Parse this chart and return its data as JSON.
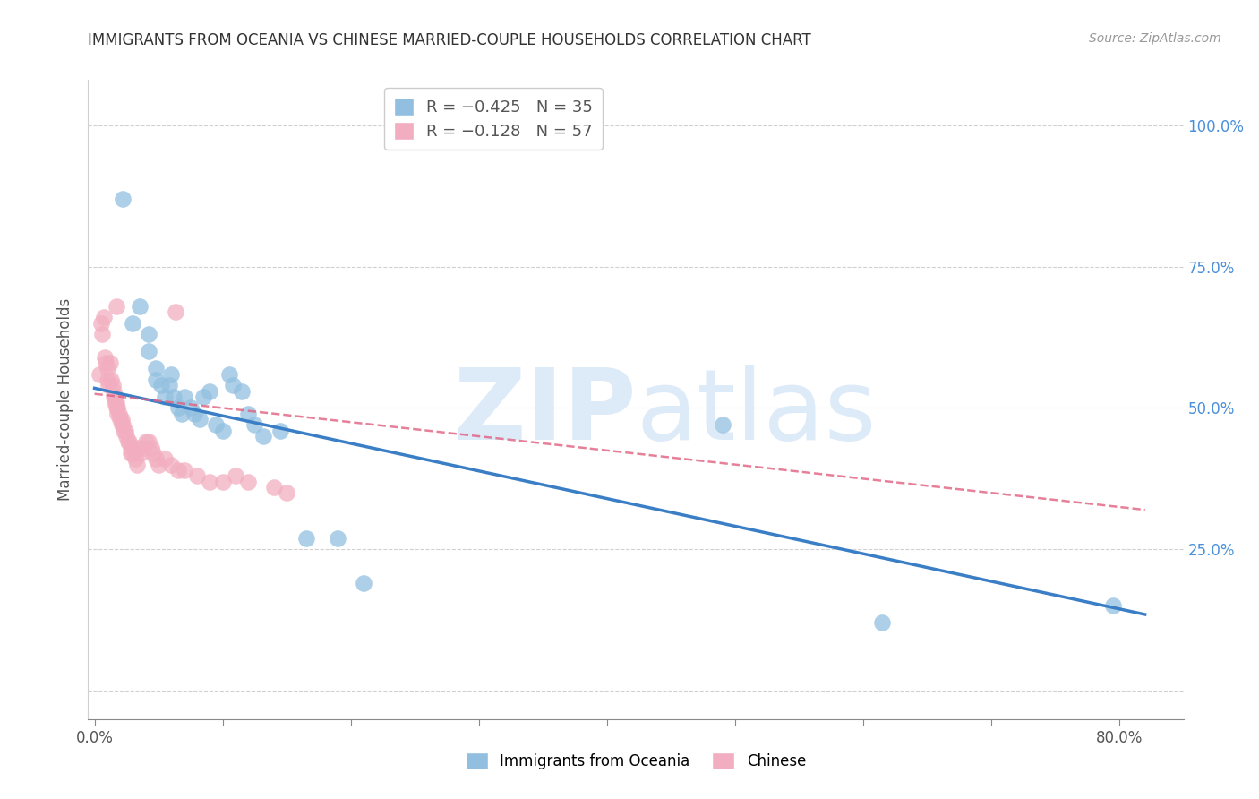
{
  "title": "IMMIGRANTS FROM OCEANIA VS CHINESE MARRIED-COUPLE HOUSEHOLDS CORRELATION CHART",
  "source": "Source: ZipAtlas.com",
  "ylabel": "Married-couple Households",
  "x_tick_positions": [
    0.0,
    0.1,
    0.2,
    0.3,
    0.4,
    0.5,
    0.6,
    0.7,
    0.8
  ],
  "x_tick_labels": [
    "0.0%",
    "",
    "",
    "",
    "",
    "",
    "",
    "",
    "80.0%"
  ],
  "y_ticks": [
    0.0,
    0.25,
    0.5,
    0.75,
    1.0
  ],
  "y_tick_labels_right": [
    "",
    "25.0%",
    "50.0%",
    "75.0%",
    "100.0%"
  ],
  "xlim": [
    -0.005,
    0.85
  ],
  "ylim": [
    -0.05,
    1.08
  ],
  "blue_color": "#92bfe0",
  "pink_color": "#f2aec0",
  "blue_line_color": "#3a7ec6",
  "pink_line_color": "#e06080",
  "watermark_zip": "ZIP",
  "watermark_atlas": "atlas",
  "watermark_color": "#ddeaf8",
  "legend_label1": "Immigrants from Oceania",
  "legend_label2": "Chinese",
  "blue_R": "R = −0.425",
  "blue_N": "N = 35",
  "pink_R": "R = −0.128",
  "pink_N": "N = 57",
  "blue_points": [
    [
      0.022,
      0.87
    ],
    [
      0.03,
      0.65
    ],
    [
      0.035,
      0.68
    ],
    [
      0.042,
      0.6
    ],
    [
      0.042,
      0.63
    ],
    [
      0.048,
      0.55
    ],
    [
      0.048,
      0.57
    ],
    [
      0.052,
      0.54
    ],
    [
      0.055,
      0.52
    ],
    [
      0.058,
      0.54
    ],
    [
      0.06,
      0.56
    ],
    [
      0.062,
      0.52
    ],
    [
      0.065,
      0.5
    ],
    [
      0.068,
      0.49
    ],
    [
      0.07,
      0.52
    ],
    [
      0.075,
      0.5
    ],
    [
      0.078,
      0.49
    ],
    [
      0.082,
      0.48
    ],
    [
      0.085,
      0.52
    ],
    [
      0.09,
      0.53
    ],
    [
      0.095,
      0.47
    ],
    [
      0.1,
      0.46
    ],
    [
      0.105,
      0.56
    ],
    [
      0.108,
      0.54
    ],
    [
      0.115,
      0.53
    ],
    [
      0.12,
      0.49
    ],
    [
      0.125,
      0.47
    ],
    [
      0.132,
      0.45
    ],
    [
      0.145,
      0.46
    ],
    [
      0.165,
      0.27
    ],
    [
      0.19,
      0.27
    ],
    [
      0.21,
      0.19
    ],
    [
      0.49,
      0.47
    ],
    [
      0.615,
      0.12
    ],
    [
      0.795,
      0.15
    ]
  ],
  "pink_points": [
    [
      0.005,
      0.65
    ],
    [
      0.006,
      0.63
    ],
    [
      0.007,
      0.66
    ],
    [
      0.008,
      0.59
    ],
    [
      0.009,
      0.58
    ],
    [
      0.01,
      0.57
    ],
    [
      0.01,
      0.55
    ],
    [
      0.011,
      0.54
    ],
    [
      0.012,
      0.58
    ],
    [
      0.013,
      0.55
    ],
    [
      0.014,
      0.54
    ],
    [
      0.015,
      0.53
    ],
    [
      0.015,
      0.52
    ],
    [
      0.016,
      0.52
    ],
    [
      0.016,
      0.51
    ],
    [
      0.017,
      0.51
    ],
    [
      0.017,
      0.5
    ],
    [
      0.018,
      0.5
    ],
    [
      0.018,
      0.49
    ],
    [
      0.019,
      0.49
    ],
    [
      0.02,
      0.48
    ],
    [
      0.021,
      0.48
    ],
    [
      0.021,
      0.47
    ],
    [
      0.022,
      0.47
    ],
    [
      0.023,
      0.46
    ],
    [
      0.024,
      0.46
    ],
    [
      0.025,
      0.45
    ],
    [
      0.026,
      0.44
    ],
    [
      0.027,
      0.44
    ],
    [
      0.028,
      0.43
    ],
    [
      0.028,
      0.42
    ],
    [
      0.03,
      0.42
    ],
    [
      0.032,
      0.41
    ],
    [
      0.033,
      0.4
    ],
    [
      0.034,
      0.43
    ],
    [
      0.036,
      0.42
    ],
    [
      0.038,
      0.43
    ],
    [
      0.04,
      0.44
    ],
    [
      0.042,
      0.44
    ],
    [
      0.044,
      0.43
    ],
    [
      0.046,
      0.42
    ],
    [
      0.048,
      0.41
    ],
    [
      0.05,
      0.4
    ],
    [
      0.055,
      0.41
    ],
    [
      0.06,
      0.4
    ],
    [
      0.065,
      0.39
    ],
    [
      0.07,
      0.39
    ],
    [
      0.08,
      0.38
    ],
    [
      0.09,
      0.37
    ],
    [
      0.1,
      0.37
    ],
    [
      0.11,
      0.38
    ],
    [
      0.12,
      0.37
    ],
    [
      0.063,
      0.67
    ],
    [
      0.017,
      0.68
    ],
    [
      0.004,
      0.56
    ],
    [
      0.14,
      0.36
    ],
    [
      0.15,
      0.35
    ]
  ],
  "blue_trend_x": [
    0.0,
    0.82
  ],
  "blue_trend_y": [
    0.535,
    0.135
  ],
  "pink_trend_x": [
    0.0,
    0.82
  ],
  "pink_trend_y": [
    0.525,
    0.32
  ]
}
